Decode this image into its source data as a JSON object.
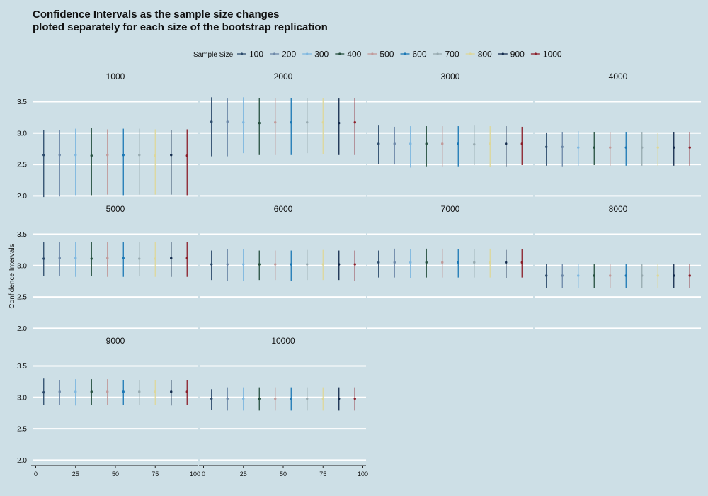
{
  "chart_data": {
    "type": "errorbar",
    "title": "Confidence Intervals as the sample size changes",
    "subtitle": "ploted separately for each size of the bootstrap replication",
    "ylabel": "Confidence Intervals",
    "xlabel": "",
    "legend": {
      "title": "Sample Size",
      "position": "top",
      "entries": [
        {
          "name": "100",
          "color": "#2b4a6b"
        },
        {
          "name": "200",
          "color": "#6c88a8"
        },
        {
          "name": "300",
          "color": "#7db7e0"
        },
        {
          "name": "400",
          "color": "#25503f"
        },
        {
          "name": "500",
          "color": "#c19a9a"
        },
        {
          "name": "600",
          "color": "#1b78b5"
        },
        {
          "name": "700",
          "color": "#97aab0"
        },
        {
          "name": "800",
          "color": "#ddd79a"
        },
        {
          "name": "900",
          "color": "#122a4c"
        },
        {
          "name": "1000",
          "color": "#8b1f2a"
        }
      ]
    },
    "x": [
      5,
      15,
      25,
      35,
      45,
      55,
      65,
      75,
      85,
      95
    ],
    "xlim": [
      -2,
      102
    ],
    "xticks": [
      "0",
      "25",
      "50",
      "75",
      "100"
    ],
    "ylim": [
      1.97,
      3.63
    ],
    "yticks": [
      "2.0",
      "2.5",
      "3.0",
      "3.5"
    ],
    "grid": true,
    "facets": [
      {
        "label": "1000",
        "mean": [
          2.65,
          2.65,
          2.65,
          2.64,
          2.65,
          2.65,
          2.65,
          2.64,
          2.65,
          2.64
        ],
        "lower": [
          1.98,
          1.99,
          2.01,
          2.01,
          2.02,
          2.01,
          2.02,
          2.02,
          2.02,
          2.01
        ],
        "upper": [
          3.05,
          3.05,
          3.07,
          3.08,
          3.06,
          3.07,
          3.07,
          3.06,
          3.05,
          3.06
        ]
      },
      {
        "label": "2000",
        "mean": [
          3.18,
          3.18,
          3.17,
          3.16,
          3.17,
          3.17,
          3.17,
          3.17,
          3.16,
          3.17
        ],
        "lower": [
          2.63,
          2.63,
          2.68,
          2.65,
          2.65,
          2.65,
          2.68,
          2.66,
          2.65,
          2.65
        ],
        "upper": [
          3.57,
          3.55,
          3.57,
          3.56,
          3.56,
          3.56,
          3.56,
          3.56,
          3.55,
          3.56
        ]
      },
      {
        "label": "3000",
        "mean": [
          2.83,
          2.83,
          2.83,
          2.83,
          2.83,
          2.83,
          2.82,
          2.83,
          2.83,
          2.83
        ],
        "lower": [
          2.51,
          2.5,
          2.45,
          2.47,
          2.47,
          2.47,
          2.49,
          2.46,
          2.47,
          2.49
        ],
        "upper": [
          3.12,
          3.1,
          3.11,
          3.11,
          3.11,
          3.11,
          3.12,
          3.11,
          3.11,
          3.1
        ]
      },
      {
        "label": "4000",
        "mean": [
          2.78,
          2.78,
          2.77,
          2.77,
          2.77,
          2.77,
          2.77,
          2.77,
          2.77,
          2.77
        ],
        "lower": [
          2.48,
          2.47,
          2.48,
          2.49,
          2.48,
          2.48,
          2.48,
          2.48,
          2.48,
          2.48
        ],
        "upper": [
          3.01,
          3.02,
          3.03,
          3.02,
          3.02,
          3.02,
          3.02,
          3.0,
          3.02,
          3.02
        ]
      },
      {
        "label": "5000",
        "mean": [
          3.11,
          3.12,
          3.12,
          3.11,
          3.12,
          3.12,
          3.11,
          3.11,
          3.12,
          3.12
        ],
        "lower": [
          2.83,
          2.84,
          2.82,
          2.83,
          2.82,
          2.82,
          2.83,
          2.82,
          2.82,
          2.82
        ],
        "upper": [
          3.37,
          3.38,
          3.38,
          3.38,
          3.37,
          3.37,
          3.38,
          3.38,
          3.37,
          3.38
        ]
      },
      {
        "label": "6000",
        "mean": [
          3.02,
          3.02,
          3.02,
          3.02,
          3.02,
          3.02,
          3.02,
          3.02,
          3.02,
          3.02
        ],
        "lower": [
          2.77,
          2.76,
          2.76,
          2.77,
          2.77,
          2.76,
          2.77,
          2.77,
          2.77,
          2.76
        ],
        "upper": [
          3.24,
          3.26,
          3.26,
          3.24,
          3.24,
          3.24,
          3.25,
          3.25,
          3.24,
          3.24
        ]
      },
      {
        "label": "7000",
        "mean": [
          3.05,
          3.05,
          3.05,
          3.05,
          3.05,
          3.05,
          3.05,
          3.05,
          3.05,
          3.05
        ],
        "lower": [
          2.81,
          2.81,
          2.8,
          2.81,
          2.81,
          2.81,
          2.81,
          2.81,
          2.8,
          2.81
        ],
        "upper": [
          3.24,
          3.27,
          3.26,
          3.27,
          3.27,
          3.26,
          3.26,
          3.27,
          3.25,
          3.26
        ]
      },
      {
        "label": "8000",
        "mean": [
          2.84,
          2.84,
          2.84,
          2.84,
          2.84,
          2.84,
          2.84,
          2.84,
          2.84,
          2.84
        ],
        "lower": [
          2.64,
          2.64,
          2.64,
          2.64,
          2.64,
          2.64,
          2.64,
          2.64,
          2.64,
          2.64
        ],
        "upper": [
          3.03,
          3.03,
          3.03,
          3.03,
          3.03,
          3.03,
          3.03,
          3.03,
          3.03,
          3.03
        ]
      },
      {
        "label": "9000",
        "mean": [
          3.08,
          3.09,
          3.09,
          3.09,
          3.09,
          3.09,
          3.09,
          3.09,
          3.09,
          3.09
        ],
        "lower": [
          2.88,
          2.88,
          2.87,
          2.88,
          2.88,
          2.88,
          2.88,
          2.88,
          2.87,
          2.88
        ],
        "upper": [
          3.3,
          3.28,
          3.29,
          3.29,
          3.29,
          3.28,
          3.28,
          3.28,
          3.28,
          3.28
        ]
      },
      {
        "label": "10000",
        "mean": [
          2.98,
          2.98,
          2.98,
          2.98,
          2.98,
          2.98,
          2.98,
          2.98,
          2.98,
          2.98
        ],
        "lower": [
          2.8,
          2.79,
          2.79,
          2.79,
          2.79,
          2.79,
          2.79,
          2.79,
          2.79,
          2.79
        ],
        "upper": [
          3.13,
          3.16,
          3.16,
          3.16,
          3.16,
          3.16,
          3.16,
          3.16,
          3.16,
          3.16
        ]
      }
    ]
  }
}
